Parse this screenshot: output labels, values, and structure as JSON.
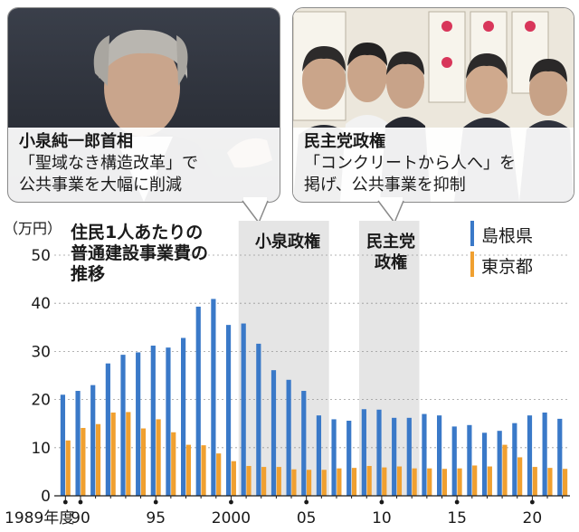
{
  "callouts": {
    "left": {
      "title": "小泉純一郎首相",
      "line1": "「聖域なき構造改革」で",
      "line2": "公共事業を大幅に削減"
    },
    "right": {
      "title": "民主党政権",
      "line1": "「コンクリートから人へ」を",
      "line2": "掲げ、公共事業を抑制"
    }
  },
  "chart_data": {
    "type": "bar",
    "title": "住民1人あたりの普通建設事業費の推移",
    "title_lines": [
      "住民1人あたりの",
      "普通建設事業費の",
      "推移"
    ],
    "ylabel": "（万円）",
    "ylim": [
      0,
      50
    ],
    "yticks": [
      0,
      10,
      20,
      30,
      40,
      50
    ],
    "x": [
      1989,
      1990,
      1991,
      1992,
      1993,
      1994,
      1995,
      1996,
      1997,
      1998,
      1999,
      2000,
      2001,
      2002,
      2003,
      2004,
      2005,
      2006,
      2007,
      2008,
      2009,
      2010,
      2011,
      2012,
      2013,
      2014,
      2015,
      2016,
      2017,
      2018,
      2019,
      2020,
      2021,
      2022
    ],
    "x_tick_labels": [
      {
        "x": 1989,
        "label": "1989年度"
      },
      {
        "x": 1990,
        "label": "90"
      },
      {
        "x": 1995,
        "label": "95"
      },
      {
        "x": 2000,
        "label": "2000"
      },
      {
        "x": 2005,
        "label": "05"
      },
      {
        "x": 2010,
        "label": "10"
      },
      {
        "x": 2015,
        "label": "15"
      },
      {
        "x": 2020,
        "label": "20"
      }
    ],
    "series": [
      {
        "name": "島根県",
        "color": "#3a79c8",
        "values": [
          21.0,
          21.8,
          23.0,
          27.5,
          29.3,
          29.8,
          31.2,
          30.8,
          32.8,
          39.3,
          40.9,
          35.5,
          35.8,
          31.6,
          26.1,
          24.1,
          21.8,
          16.7,
          15.9,
          15.6,
          18.0,
          17.9,
          16.2,
          16.2,
          17.0,
          16.7,
          14.4,
          14.7,
          13.1,
          13.5,
          15.1,
          16.7,
          17.3,
          16.0
        ]
      },
      {
        "name": "東京都",
        "color": "#f0a030",
        "values": [
          11.5,
          14.1,
          14.9,
          17.3,
          17.4,
          14.0,
          15.9,
          13.2,
          10.6,
          10.5,
          8.8,
          7.2,
          6.2,
          6.0,
          6.0,
          5.5,
          5.4,
          5.4,
          5.7,
          5.8,
          6.2,
          5.9,
          6.1,
          5.7,
          5.7,
          5.6,
          5.7,
          6.3,
          6.1,
          10.6,
          8.0,
          6.0,
          5.8,
          5.6
        ]
      }
    ],
    "legend_position": "top-right",
    "shaded_periods": [
      {
        "label": "小泉政権",
        "label_lines": [
          "小泉政権"
        ],
        "start": 2001,
        "end": 2006
      },
      {
        "label": "民主党政権",
        "label_lines": [
          "民主党",
          "政権"
        ],
        "start": 2009,
        "end": 2012
      }
    ]
  },
  "colors": {
    "tokyo": "#f0a030",
    "shimane": "#3a79c8",
    "shade": "#e5e5e5"
  }
}
